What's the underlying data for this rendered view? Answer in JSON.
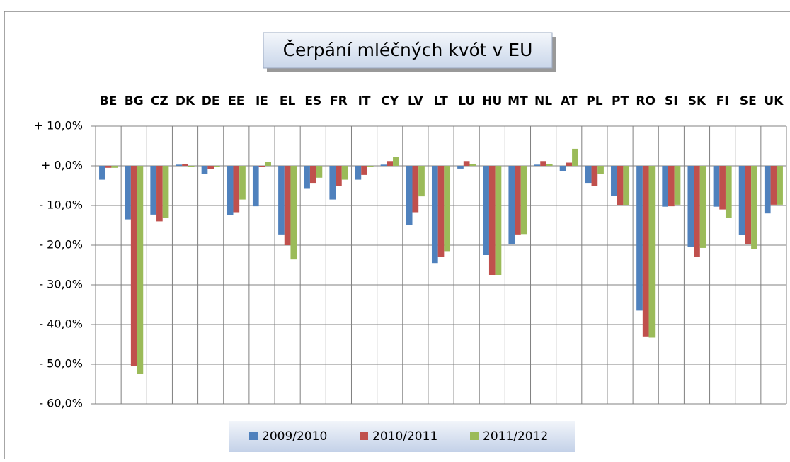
{
  "chart_data": {
    "type": "bar",
    "title": "Čerpání mléčných kvót v EU",
    "categories": [
      "BE",
      "BG",
      "CZ",
      "DK",
      "DE",
      "EE",
      "IE",
      "EL",
      "ES",
      "FR",
      "IT",
      "CY",
      "LV",
      "LT",
      "LU",
      "HU",
      "MT",
      "NL",
      "AT",
      "PL",
      "PT",
      "RO",
      "SI",
      "SK",
      "FI",
      "SE",
      "UK"
    ],
    "series": [
      {
        "name": "2009/2010",
        "color": "#4f81bd",
        "values": [
          -3.5,
          -13.5,
          -12.3,
          0.3,
          -2,
          -12.5,
          -10.2,
          -17.3,
          -5.8,
          -8.5,
          -3.5,
          0.3,
          -15,
          -24.5,
          -0.7,
          -22.5,
          -19.7,
          0.3,
          -1.3,
          -4.3,
          -7.5,
          -36.5,
          -10.3,
          -20.5,
          -10.3,
          -17.5,
          -12
        ]
      },
      {
        "name": "2010/2011",
        "color": "#c0504d",
        "values": [
          -0.5,
          -50.5,
          -14,
          0.5,
          -0.8,
          -11.7,
          -0.3,
          -20,
          -4.3,
          -5,
          -2.3,
          1.2,
          -11.7,
          -23,
          1.2,
          -27.5,
          -17.3,
          1.2,
          0.8,
          -5,
          -10,
          -43,
          -10.2,
          -23,
          -11,
          -19.7,
          -9.8
        ]
      },
      {
        "name": "2011/2012",
        "color": "#9bbb59",
        "values": [
          -0.5,
          -52.5,
          -13.2,
          -0.3,
          -0.2,
          -8.5,
          1,
          -23.6,
          -3,
          -3.5,
          -0.3,
          2.3,
          -7.7,
          -21.5,
          0.5,
          -27.5,
          -17.2,
          0.5,
          4.3,
          -2,
          -10,
          -43.3,
          -9.8,
          -20.7,
          -13.2,
          -21,
          -9.8
        ]
      }
    ],
    "ylim": [
      -60,
      10
    ],
    "yticks": [
      {
        "value": 10,
        "label": "+ 10,0%"
      },
      {
        "value": 0,
        "label": "+ 0,0%"
      },
      {
        "value": -10,
        "label": "- 10,0%"
      },
      {
        "value": -20,
        "label": "- 20,0%"
      },
      {
        "value": -30,
        "label": "- 30,0%"
      },
      {
        "value": -40,
        "label": "- 40,0%"
      },
      {
        "value": -50,
        "label": "- 50,0%"
      },
      {
        "value": -60,
        "label": "- 60,0%"
      }
    ],
    "grid": true
  }
}
